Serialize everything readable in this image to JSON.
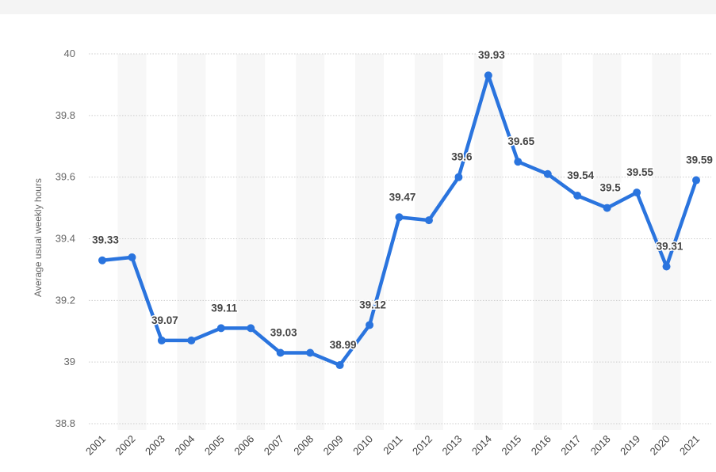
{
  "chart_data": {
    "type": "line",
    "categories": [
      "2001",
      "2002",
      "2003",
      "2004",
      "2005",
      "2006",
      "2007",
      "2008",
      "2009",
      "2010",
      "2011",
      "2012",
      "2013",
      "2014",
      "2015",
      "2016",
      "2017",
      "2018",
      "2019",
      "2020",
      "2021"
    ],
    "series": [
      {
        "values": [
          39.33,
          39.34,
          39.07,
          39.07,
          39.11,
          39.11,
          39.03,
          39.03,
          38.99,
          39.12,
          39.47,
          39.46,
          39.6,
          39.93,
          39.65,
          39.61,
          39.54,
          39.5,
          39.55,
          39.31,
          39.59
        ],
        "data_labels": [
          "39.33",
          null,
          "39.07",
          null,
          "39.11",
          null,
          "39.03",
          null,
          "38.99",
          "39.12",
          "39.47",
          null,
          "39.6",
          "39.93",
          "39.65",
          null,
          "39.54",
          "39.5",
          "39.55",
          "39.31",
          "39.59"
        ]
      }
    ],
    "xlabel": "",
    "ylabel": "Average usual weekly hours",
    "ylim": [
      38.8,
      40
    ],
    "yticks": [
      "38.8",
      "39",
      "39.2",
      "39.4",
      "39.6",
      "39.8",
      "40"
    ],
    "grid": true,
    "legend": "none",
    "colors": {
      "line": "#2a74de",
      "band": "#f7f7f7",
      "grid": "#cccccc"
    }
  }
}
